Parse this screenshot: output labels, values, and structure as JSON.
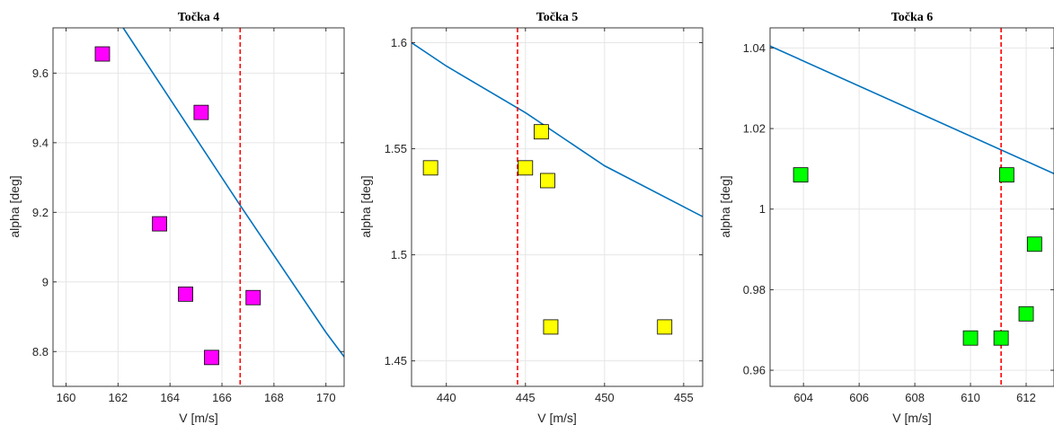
{
  "chart_data": [
    {
      "type": "scatter",
      "title": "Točka 4",
      "xlabel": "V [m/s]",
      "ylabel": "alpha [deg]",
      "xlim": [
        159.5,
        170.7
      ],
      "ylim": [
        8.7,
        9.73
      ],
      "xticks": [
        160,
        162,
        164,
        166,
        168,
        170
      ],
      "yticks": [
        8.8,
        9,
        9.2,
        9.4,
        9.6
      ],
      "tick_labels_x": [
        "160",
        "162",
        "164",
        "166",
        "168",
        "170"
      ],
      "tick_labels_y": [
        "8.8",
        "9",
        "9.2",
        "9.4",
        "9.6"
      ],
      "grid": true,
      "marker_color": "#ff00ff",
      "line_color": "#0072bd",
      "vline_color": "#ff0000",
      "vline_x": 166.7,
      "line": {
        "x": [
          162.2,
          166.7,
          170.0,
          170.7
        ],
        "y": [
          9.73,
          9.22,
          8.855,
          8.785
        ]
      },
      "points": {
        "x": [
          161.4,
          165.2,
          163.6,
          164.6,
          167.2,
          165.6
        ],
        "y": [
          9.655,
          9.487,
          9.167,
          8.965,
          8.955,
          8.783
        ]
      }
    },
    {
      "type": "scatter",
      "title": "Točka 5",
      "xlabel": "V [m/s]",
      "ylabel": "alpha [deg]",
      "xlim": [
        437.8,
        456.2
      ],
      "ylim": [
        1.438,
        1.607
      ],
      "xticks": [
        440,
        445,
        450,
        455
      ],
      "yticks": [
        1.45,
        1.5,
        1.55,
        1.6
      ],
      "tick_labels_x": [
        "440",
        "445",
        "450",
        "455"
      ],
      "tick_labels_y": [
        "1.45",
        "1.5",
        "1.55",
        "1.6"
      ],
      "grid": true,
      "marker_color": "#ffff00",
      "line_color": "#0072bd",
      "vline_color": "#ff0000",
      "vline_x": 444.5,
      "line": {
        "x": [
          437.8,
          440,
          445,
          450,
          456.2
        ],
        "y": [
          1.6,
          1.589,
          1.567,
          1.542,
          1.518
        ]
      },
      "points": {
        "x": [
          439.0,
          445.0,
          446.0,
          446.4,
          446.6,
          453.8
        ],
        "y": [
          1.541,
          1.541,
          1.558,
          1.535,
          1.466,
          1.466
        ]
      }
    },
    {
      "type": "scatter",
      "title": "Točka 6",
      "xlabel": "V [m/s]",
      "ylabel": "alpha [deg]",
      "xlim": [
        602.8,
        613.0
      ],
      "ylim": [
        0.956,
        1.045
      ],
      "xticks": [
        604,
        606,
        608,
        610,
        612
      ],
      "yticks": [
        0.96,
        0.98,
        1,
        1.02,
        1.04
      ],
      "tick_labels_x": [
        "604",
        "606",
        "608",
        "610",
        "612"
      ],
      "tick_labels_y": [
        "0.96",
        "0.98",
        "1",
        "1.02",
        "1.04"
      ],
      "grid": true,
      "marker_color": "#00ff00",
      "line_color": "#0072bd",
      "vline_color": "#ff0000",
      "vline_x": 611.1,
      "line": {
        "x": [
          602.8,
          613.0
        ],
        "y": [
          1.0405,
          1.0088
        ]
      },
      "points": {
        "x": [
          603.9,
          611.3,
          612.3,
          612.0,
          610.0,
          611.1
        ],
        "y": [
          1.0085,
          1.0085,
          0.9913,
          0.974,
          0.968,
          0.968
        ]
      }
    }
  ]
}
